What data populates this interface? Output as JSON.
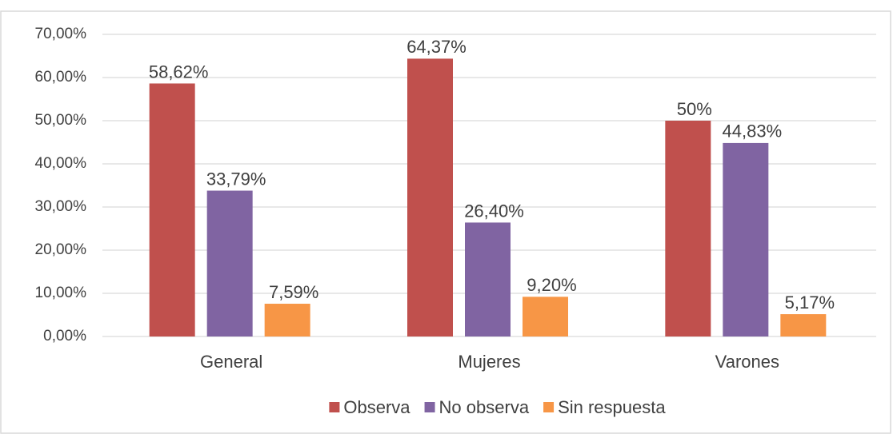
{
  "chart_data": {
    "type": "bar",
    "categories": [
      "General",
      "Mujeres",
      "Varones"
    ],
    "series": [
      {
        "name": "Observa",
        "color": "#c0504d",
        "values": [
          58.62,
          64.37,
          50
        ],
        "value_labels": [
          "58,62%",
          "64,37%",
          "50%"
        ]
      },
      {
        "name": "No observa",
        "color": "#8064a2",
        "values": [
          33.79,
          26.4,
          44.83
        ],
        "value_labels": [
          "33,79%",
          "26,40%",
          "44,83%"
        ]
      },
      {
        "name": "Sin respuesta",
        "color": "#f79646",
        "values": [
          7.59,
          9.2,
          5.17
        ],
        "value_labels": [
          "7,59%",
          "9,20%",
          "5,17%"
        ]
      }
    ],
    "ylim": [
      0,
      70
    ],
    "yticks": [
      {
        "value": 0,
        "label": "0,00%"
      },
      {
        "value": 10,
        "label": "10,00%"
      },
      {
        "value": 20,
        "label": "20,00%"
      },
      {
        "value": 30,
        "label": "30,00%"
      },
      {
        "value": 40,
        "label": "40,00%"
      },
      {
        "value": 50,
        "label": "50,00%"
      },
      {
        "value": 60,
        "label": "60,00%"
      },
      {
        "value": 70,
        "label": "70,00%"
      }
    ],
    "grid": true,
    "legend": "bottom"
  }
}
